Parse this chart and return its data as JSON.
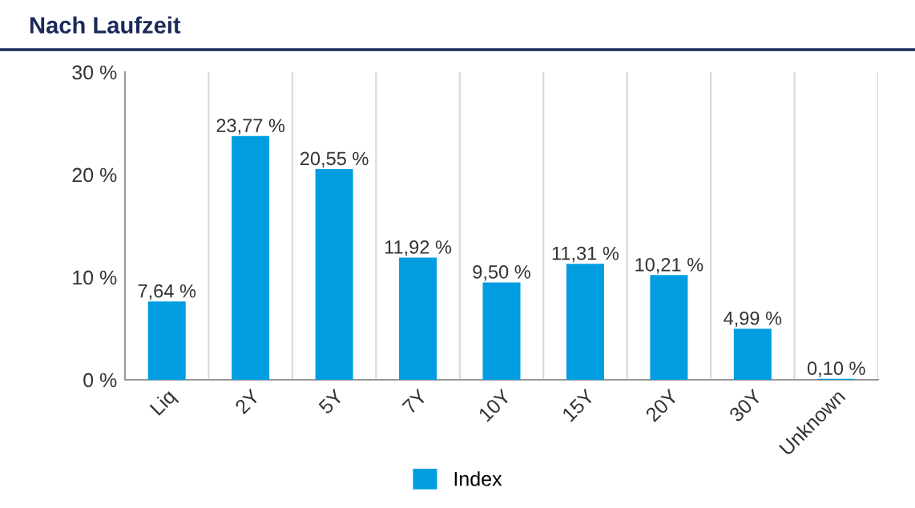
{
  "chart_data": {
    "type": "bar",
    "title": "Nach Laufzeit",
    "categories": [
      "Liq",
      "2Y",
      "5Y",
      "7Y",
      "10Y",
      "15Y",
      "20Y",
      "30Y",
      "Unknown"
    ],
    "series": [
      {
        "name": "Index",
        "color": "#009ee0",
        "values": [
          7.64,
          23.77,
          20.55,
          11.92,
          9.5,
          11.31,
          10.21,
          4.99,
          0.1
        ],
        "value_labels": [
          "7,64 %",
          "23,77 %",
          "20,55 %",
          "11,92 %",
          "9,50 %",
          "11,31 %",
          "10,21 %",
          "4,99 %",
          "0,10 %"
        ]
      }
    ],
    "ylim": [
      0,
      30
    ],
    "yticks": [
      {
        "value": 0,
        "label": "0 %"
      },
      {
        "value": 10,
        "label": "10 %"
      },
      {
        "value": 20,
        "label": "20 %"
      },
      {
        "value": 30,
        "label": "30 %"
      }
    ],
    "grid": "x",
    "legend": "bottom"
  }
}
